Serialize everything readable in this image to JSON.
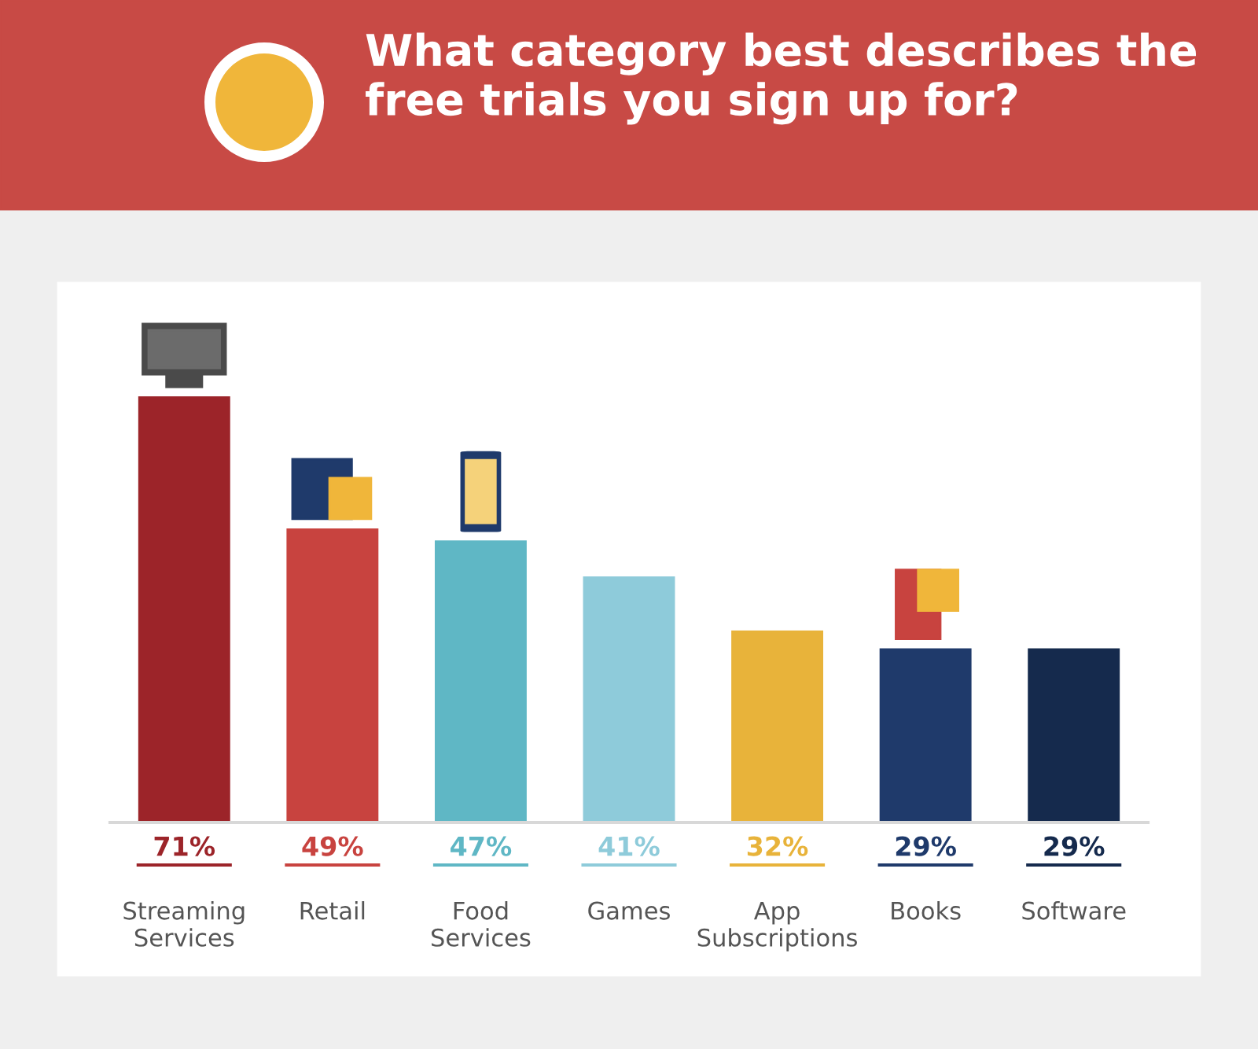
{
  "chart_data": {
    "type": "bar",
    "title": "What category best describes the free trials you sign up for?",
    "categories": [
      "Streaming\nServices",
      "Retail",
      "Food\nServices",
      "Games",
      "App\nSubscriptions",
      "Books",
      "Software"
    ],
    "values": [
      71,
      49,
      47,
      41,
      32,
      29,
      29
    ],
    "value_labels": [
      "71%",
      "49%",
      "47%",
      "41%",
      "32%",
      "29%",
      "29%"
    ],
    "colors": [
      "#9c2429",
      "#c8433f",
      "#5fb7c5",
      "#8ecbda",
      "#e8b33a",
      "#1f3a6b",
      "#152a4d"
    ]
  }
}
